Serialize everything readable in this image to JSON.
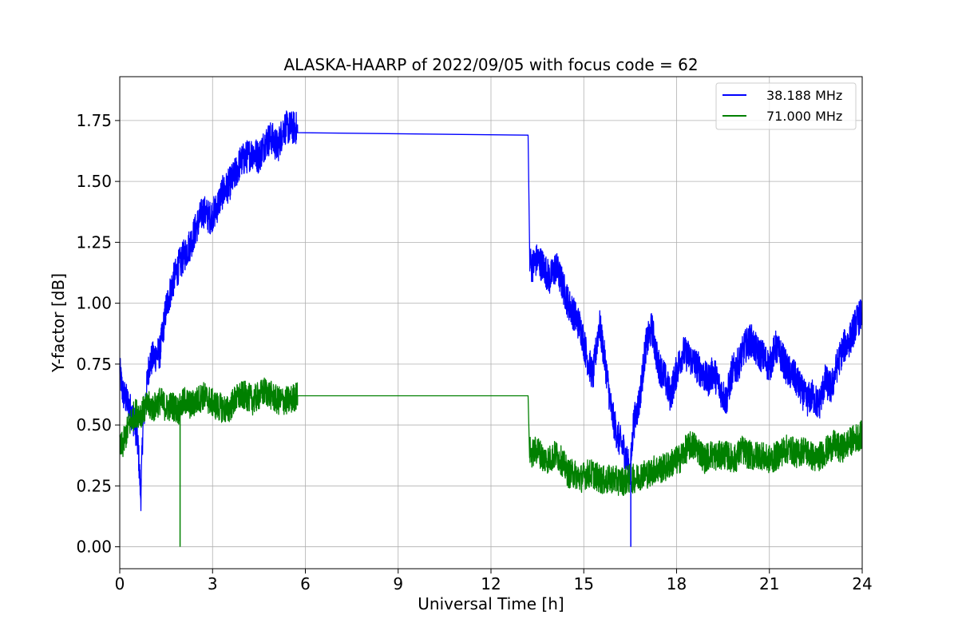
{
  "chart_data": {
    "type": "line",
    "title": "ALASKA-HAARP of 2022/09/05 with focus code = 62",
    "xlabel": "Universal Time [h]",
    "ylabel": "Y-factor [dB]",
    "xlim": [
      0,
      24
    ],
    "ylim": [
      -0.09,
      1.93
    ],
    "xticks": [
      0,
      3,
      6,
      9,
      12,
      15,
      18,
      21,
      24
    ],
    "xtick_labels": [
      "0",
      "3",
      "6",
      "9",
      "12",
      "15",
      "18",
      "21",
      "24"
    ],
    "yticks": [
      0.0,
      0.25,
      0.5,
      0.75,
      1.0,
      1.25,
      1.5,
      1.75
    ],
    "ytick_labels": [
      "0.00",
      "0.25",
      "0.50",
      "0.75",
      "1.00",
      "1.25",
      "1.50",
      "1.75"
    ],
    "grid": true,
    "legend_position": "top-right",
    "series": [
      {
        "name": "38.188 MHz",
        "color": "#0000ff",
        "x": [
          0.0,
          0.1,
          0.3,
          0.5,
          0.6,
          0.68,
          0.75,
          0.85,
          0.95,
          1.1,
          1.3,
          1.5,
          1.7,
          1.9,
          2.1,
          2.3,
          2.5,
          2.7,
          2.9,
          3.1,
          3.3,
          3.5,
          3.7,
          3.9,
          4.1,
          4.3,
          4.5,
          4.7,
          4.9,
          5.1,
          5.3,
          5.5,
          5.7,
          5.75,
          13.2,
          13.25,
          13.3,
          13.5,
          13.7,
          13.9,
          14.1,
          14.3,
          14.5,
          14.7,
          14.9,
          15.1,
          15.3,
          15.5,
          15.7,
          15.9,
          16.1,
          16.3,
          16.5,
          16.6,
          16.8,
          17.0,
          17.2,
          17.4,
          17.6,
          17.8,
          18.0,
          18.2,
          18.4,
          18.6,
          18.8,
          19.0,
          19.2,
          19.4,
          19.6,
          19.8,
          20.0,
          20.2,
          20.4,
          20.6,
          20.8,
          21.0,
          21.2,
          21.4,
          21.6,
          21.8,
          22.0,
          22.2,
          22.4,
          22.6,
          22.8,
          23.0,
          23.2,
          23.4,
          23.6,
          23.8,
          24.0
        ],
        "y": [
          0.72,
          0.63,
          0.58,
          0.5,
          0.4,
          0.2,
          0.5,
          0.62,
          0.75,
          0.78,
          0.8,
          0.98,
          1.08,
          1.15,
          1.2,
          1.25,
          1.32,
          1.38,
          1.35,
          1.38,
          1.45,
          1.48,
          1.52,
          1.58,
          1.6,
          1.62,
          1.6,
          1.66,
          1.68,
          1.64,
          1.72,
          1.72,
          1.72,
          1.7,
          1.69,
          1.2,
          1.15,
          1.18,
          1.15,
          1.1,
          1.15,
          1.08,
          1.0,
          0.95,
          0.9,
          0.78,
          0.7,
          0.92,
          0.75,
          0.55,
          0.45,
          0.4,
          0.3,
          0.5,
          0.6,
          0.82,
          0.9,
          0.75,
          0.7,
          0.62,
          0.72,
          0.8,
          0.78,
          0.75,
          0.72,
          0.68,
          0.72,
          0.65,
          0.6,
          0.72,
          0.75,
          0.82,
          0.85,
          0.8,
          0.78,
          0.74,
          0.82,
          0.78,
          0.72,
          0.7,
          0.65,
          0.6,
          0.62,
          0.58,
          0.68,
          0.65,
          0.75,
          0.82,
          0.85,
          0.92,
          0.96
        ],
        "noise": 0.07,
        "gap": [
          5.75,
          13.2
        ]
      },
      {
        "name": "71.000 MHz",
        "color": "#008000",
        "x": [
          0.0,
          0.1,
          0.3,
          0.5,
          0.7,
          0.9,
          1.1,
          1.3,
          1.5,
          1.7,
          1.9,
          2.1,
          2.3,
          2.5,
          2.7,
          2.9,
          3.1,
          3.3,
          3.5,
          3.7,
          3.9,
          4.1,
          4.3,
          4.5,
          4.7,
          4.9,
          5.1,
          5.3,
          5.5,
          5.7,
          5.75,
          13.2,
          13.25,
          13.3,
          13.5,
          13.7,
          13.9,
          14.1,
          14.3,
          14.5,
          14.7,
          14.9,
          15.1,
          15.3,
          15.5,
          15.7,
          15.9,
          16.1,
          16.3,
          16.5,
          16.7,
          16.9,
          17.1,
          17.3,
          17.5,
          17.7,
          17.9,
          18.1,
          18.3,
          18.5,
          18.7,
          18.9,
          19.1,
          19.3,
          19.5,
          19.7,
          19.9,
          20.1,
          20.3,
          20.5,
          20.7,
          20.9,
          21.1,
          21.3,
          21.5,
          21.7,
          21.9,
          22.1,
          22.3,
          22.5,
          22.7,
          22.9,
          23.1,
          23.3,
          23.5,
          23.7,
          24.0
        ],
        "y": [
          0.4,
          0.42,
          0.5,
          0.55,
          0.55,
          0.58,
          0.57,
          0.6,
          0.57,
          0.58,
          0.56,
          0.6,
          0.58,
          0.6,
          0.62,
          0.6,
          0.58,
          0.57,
          0.56,
          0.6,
          0.62,
          0.62,
          0.6,
          0.62,
          0.64,
          0.62,
          0.6,
          0.6,
          0.6,
          0.62,
          0.62,
          0.62,
          0.4,
          0.38,
          0.4,
          0.36,
          0.36,
          0.38,
          0.35,
          0.3,
          0.3,
          0.28,
          0.3,
          0.3,
          0.28,
          0.27,
          0.28,
          0.27,
          0.27,
          0.28,
          0.28,
          0.3,
          0.3,
          0.32,
          0.32,
          0.33,
          0.35,
          0.36,
          0.4,
          0.42,
          0.4,
          0.36,
          0.38,
          0.37,
          0.38,
          0.37,
          0.36,
          0.4,
          0.38,
          0.37,
          0.38,
          0.36,
          0.36,
          0.38,
          0.4,
          0.4,
          0.38,
          0.4,
          0.38,
          0.36,
          0.38,
          0.4,
          0.42,
          0.4,
          0.42,
          0.44,
          0.46
        ],
        "noise": 0.06,
        "gap": [
          5.75,
          13.2
        ]
      }
    ],
    "annotations": [
      {
        "series": "71.000 MHz",
        "x": 1.95,
        "y": 0.0,
        "kind": "dropout"
      },
      {
        "series": "38.188 MHz",
        "x": 16.52,
        "y": 0.0,
        "kind": "dropout"
      }
    ]
  }
}
